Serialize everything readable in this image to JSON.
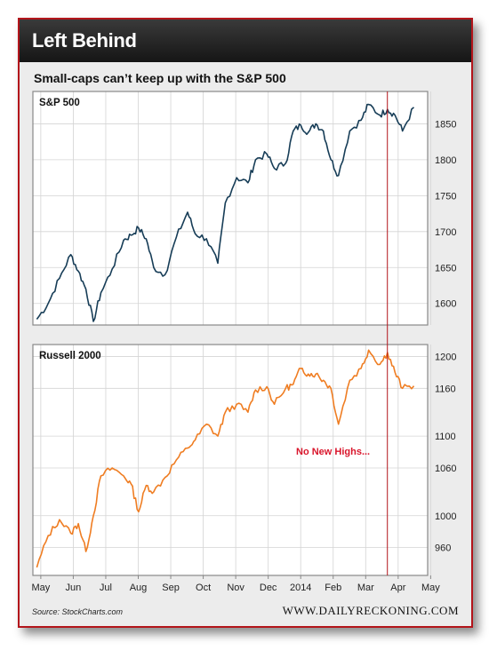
{
  "header": {
    "title": "Left Behind"
  },
  "subtitle": "Small-caps can’t keep up with the S&P 500",
  "source": "Source: StockCharts.com",
  "site": "WWW.DAILYRECKONING.COM",
  "colors": {
    "sp500_line": "#173d57",
    "russell_line": "#ef7d22",
    "marker_line": "#b3151b",
    "annotation": "#d9152b",
    "frame": "#b3151b"
  },
  "chart_data": [
    {
      "type": "line",
      "title": "S&P 500",
      "series": [
        {
          "name": "S&P 500",
          "x": [
            0,
            0.03,
            0.06,
            0.09,
            0.11,
            0.13,
            0.15,
            0.17,
            0.2,
            0.23,
            0.25,
            0.27,
            0.29,
            0.31,
            0.34,
            0.37,
            0.4,
            0.42,
            0.45,
            0.48,
            0.5,
            0.53,
            0.56,
            0.58,
            0.61,
            0.63,
            0.66,
            0.68,
            0.7,
            0.72,
            0.74,
            0.76,
            0.78,
            0.8,
            0.83,
            0.86,
            0.88,
            0.91,
            0.93,
            0.95,
            0.97,
            1.0
          ],
          "values": [
            1578,
            1600,
            1635,
            1668,
            1645,
            1620,
            1575,
            1615,
            1648,
            1688,
            1695,
            1705,
            1690,
            1650,
            1640,
            1692,
            1727,
            1697,
            1690,
            1656,
            1740,
            1775,
            1768,
            1800,
            1808,
            1788,
            1795,
            1840,
            1848,
            1838,
            1850,
            1840,
            1800,
            1778,
            1840,
            1855,
            1877,
            1862,
            1870,
            1862,
            1840,
            1873
          ]
        }
      ],
      "ylim": [
        1570,
        1895
      ],
      "yticks": [
        "1850",
        "1800",
        "1750",
        "1700",
        "1650",
        "1600"
      ]
    },
    {
      "type": "line",
      "title": "Russell 2000",
      "series": [
        {
          "name": "Russell 2000",
          "x": [
            0,
            0.03,
            0.06,
            0.09,
            0.11,
            0.13,
            0.15,
            0.17,
            0.2,
            0.23,
            0.25,
            0.27,
            0.29,
            0.31,
            0.34,
            0.37,
            0.4,
            0.42,
            0.45,
            0.48,
            0.5,
            0.53,
            0.56,
            0.58,
            0.61,
            0.63,
            0.66,
            0.68,
            0.7,
            0.72,
            0.74,
            0.76,
            0.78,
            0.8,
            0.83,
            0.86,
            0.88,
            0.91,
            0.93,
            0.95,
            0.97,
            1.0
          ],
          "values": [
            935,
            975,
            995,
            978,
            990,
            955,
            1000,
            1050,
            1060,
            1050,
            1040,
            1005,
            1038,
            1030,
            1048,
            1070,
            1085,
            1095,
            1115,
            1100,
            1130,
            1140,
            1130,
            1158,
            1162,
            1140,
            1160,
            1165,
            1185,
            1178,
            1178,
            1170,
            1160,
            1115,
            1170,
            1185,
            1208,
            1190,
            1205,
            1180,
            1160,
            1163
          ]
        }
      ],
      "ylim": [
        925,
        1215
      ],
      "yticks": [
        "1200",
        "1160",
        "1100",
        "1060",
        "1000",
        "960"
      ],
      "annotations": [
        "No New Highs..."
      ]
    }
  ],
  "x_axis": {
    "tick_labels": [
      "May",
      "Jun",
      "Jul",
      "Aug",
      "Sep",
      "Oct",
      "Nov",
      "Dec",
      "2014",
      "Feb",
      "Mar",
      "Apr",
      "May"
    ]
  }
}
